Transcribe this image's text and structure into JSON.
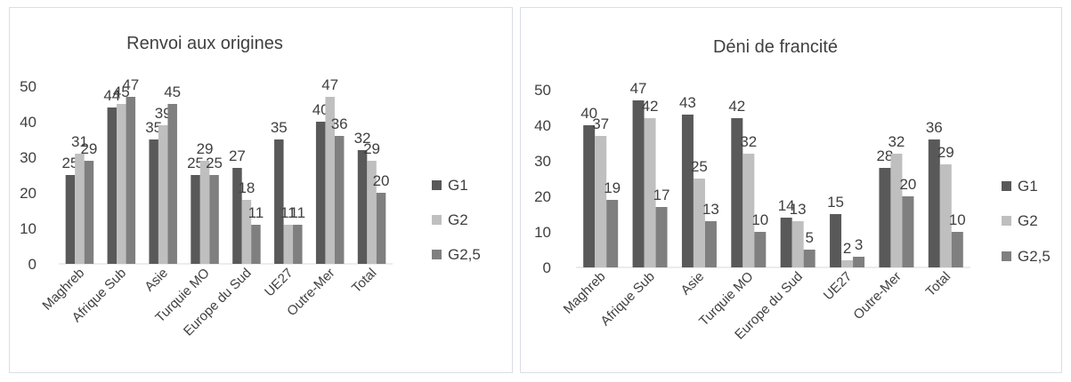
{
  "chart_data": [
    {
      "type": "bar",
      "title": "Renvoi aux origines",
      "categories": [
        "Maghreb",
        "Afrique Sub",
        "Asie",
        "Turquie MO",
        "Europe du Sud",
        "UE27",
        "Outre-Mer",
        "Total"
      ],
      "series": [
        {
          "name": "G1",
          "values": [
            25,
            44,
            35,
            25,
            27,
            35,
            40,
            32
          ],
          "color": "#595959"
        },
        {
          "name": "G2",
          "values": [
            31,
            45,
            39,
            29,
            18,
            11,
            47,
            29
          ],
          "color": "#bfbfbf"
        },
        {
          "name": "G2,5",
          "values": [
            29,
            47,
            45,
            25,
            11,
            11,
            36,
            20
          ],
          "color": "#7f7f7f"
        }
      ],
      "yticks": [
        "0",
        "10",
        "20",
        "30",
        "40",
        "50"
      ],
      "ylim": [
        0,
        50
      ],
      "grid": false,
      "legend": "right"
    },
    {
      "type": "bar",
      "title": "Déni de francité",
      "categories": [
        "Maghreb",
        "Afrique Sub",
        "Asie",
        "Turquie MO",
        "Europe du Sud",
        "UE27",
        "Outre-Mer",
        "Total"
      ],
      "series": [
        {
          "name": "G1",
          "values": [
            40,
            47,
            43,
            42,
            14,
            15,
            28,
            36
          ],
          "color": "#595959"
        },
        {
          "name": "G2",
          "values": [
            37,
            42,
            25,
            32,
            13,
            2,
            32,
            29
          ],
          "color": "#bfbfbf"
        },
        {
          "name": "G2,5",
          "values": [
            19,
            17,
            13,
            10,
            5,
            3,
            20,
            10
          ],
          "color": "#7f7f7f"
        }
      ],
      "yticks": [
        "0",
        "10",
        "20",
        "30",
        "40",
        "50"
      ],
      "ylim": [
        0,
        50
      ],
      "grid": false,
      "legend": "right"
    }
  ]
}
